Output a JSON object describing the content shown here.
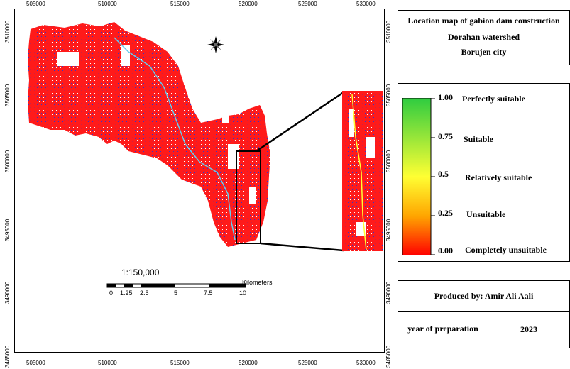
{
  "map": {
    "top_ticks": [
      "505000",
      "510000",
      "515000",
      "520000",
      "525000",
      "530000"
    ],
    "bottom_ticks": [
      "505000",
      "510000",
      "515000",
      "520000",
      "525000",
      "530000"
    ],
    "left_ticks": [
      "3510000",
      "3505000",
      "3500000",
      "3495000",
      "3490000",
      "3485000"
    ],
    "right_ticks": [
      "3510000",
      "3505000",
      "3500000",
      "3495000",
      "3490000",
      "3485000"
    ],
    "scale_ratio": "1:150,000",
    "scale_unit": "Kilometers",
    "scale_ticks": [
      "0",
      "1.25",
      "2.5",
      "5",
      "7.5",
      "10"
    ]
  },
  "title_panel": {
    "line1": "Location map of gabion dam construction",
    "line2": "Dorahan watershed",
    "line3": "Borujen city"
  },
  "legend": {
    "items": [
      {
        "value": "1.00",
        "label": "Perfectly suitable"
      },
      {
        "value": "0.75",
        "label": "Suitable"
      },
      {
        "value": "0.5",
        "label": "Relatively suitable"
      },
      {
        "value": "0.25",
        "label": "Unsuitable"
      },
      {
        "value": "0.00",
        "label": "Completely unsuitable"
      }
    ],
    "colors": {
      "high": "#2ecc40",
      "mid": "#ffff33",
      "low": "#ff0000"
    }
  },
  "credits": {
    "produced_by": "Produced by: Amir Ali Aali",
    "year_label": "year of preparation",
    "year_value": "2023"
  }
}
